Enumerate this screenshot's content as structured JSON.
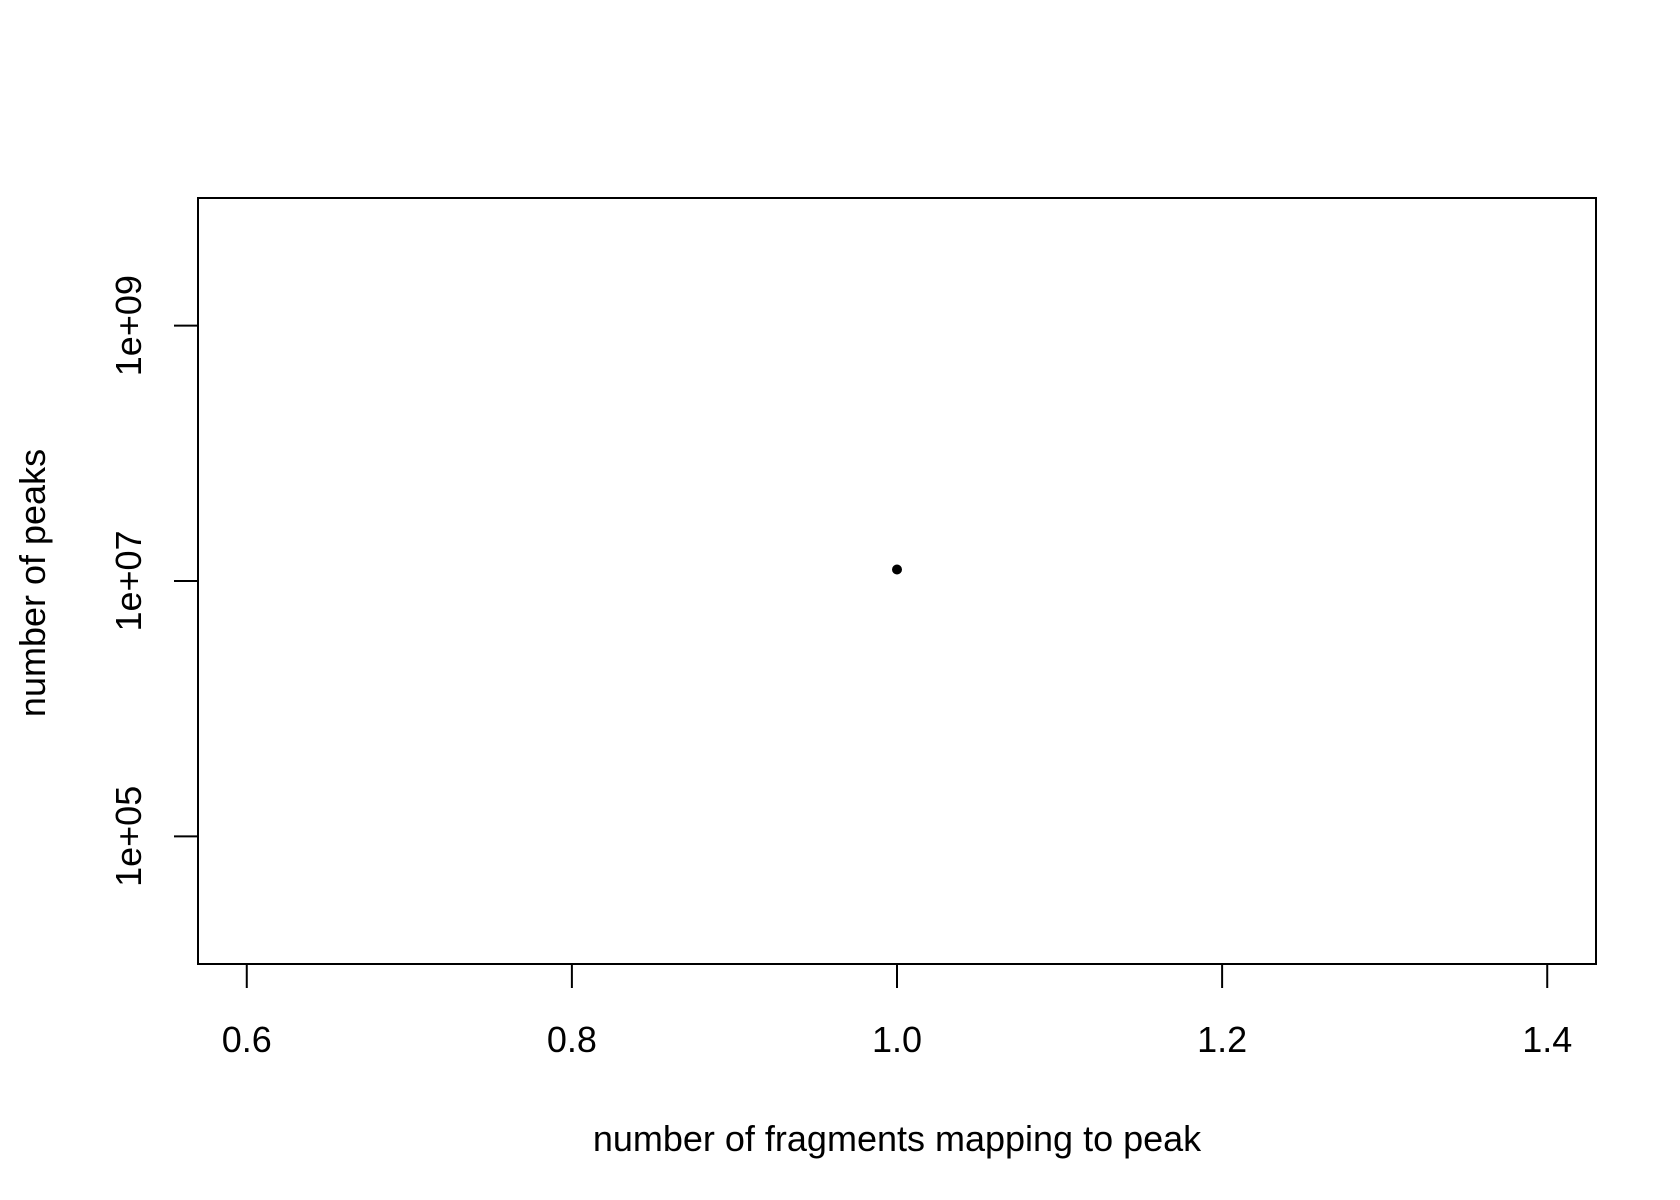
{
  "chart_data": {
    "type": "scatter",
    "title": "",
    "xlabel": "number of fragments mapping to peak",
    "ylabel": "number of peaks",
    "xlim": [
      0.57,
      1.43
    ],
    "ylim": [
      10000,
      10000000000
    ],
    "y_scale": "log",
    "grid": false,
    "legend": "none",
    "x_ticks": [
      {
        "value": 0.6,
        "label": "0.6"
      },
      {
        "value": 0.8,
        "label": "0.8"
      },
      {
        "value": 1.0,
        "label": "1.0"
      },
      {
        "value": 1.2,
        "label": "1.2"
      },
      {
        "value": 1.4,
        "label": "1.4"
      }
    ],
    "y_ticks": [
      {
        "value": 100000,
        "label": "1e+05"
      },
      {
        "value": 10000000,
        "label": "1e+07"
      },
      {
        "value": 1000000000,
        "label": "1e+09"
      }
    ],
    "points": [
      {
        "x": 1.0,
        "y": 12300000
      }
    ],
    "colors": {
      "point": "#000000",
      "axis": "#000000"
    }
  }
}
